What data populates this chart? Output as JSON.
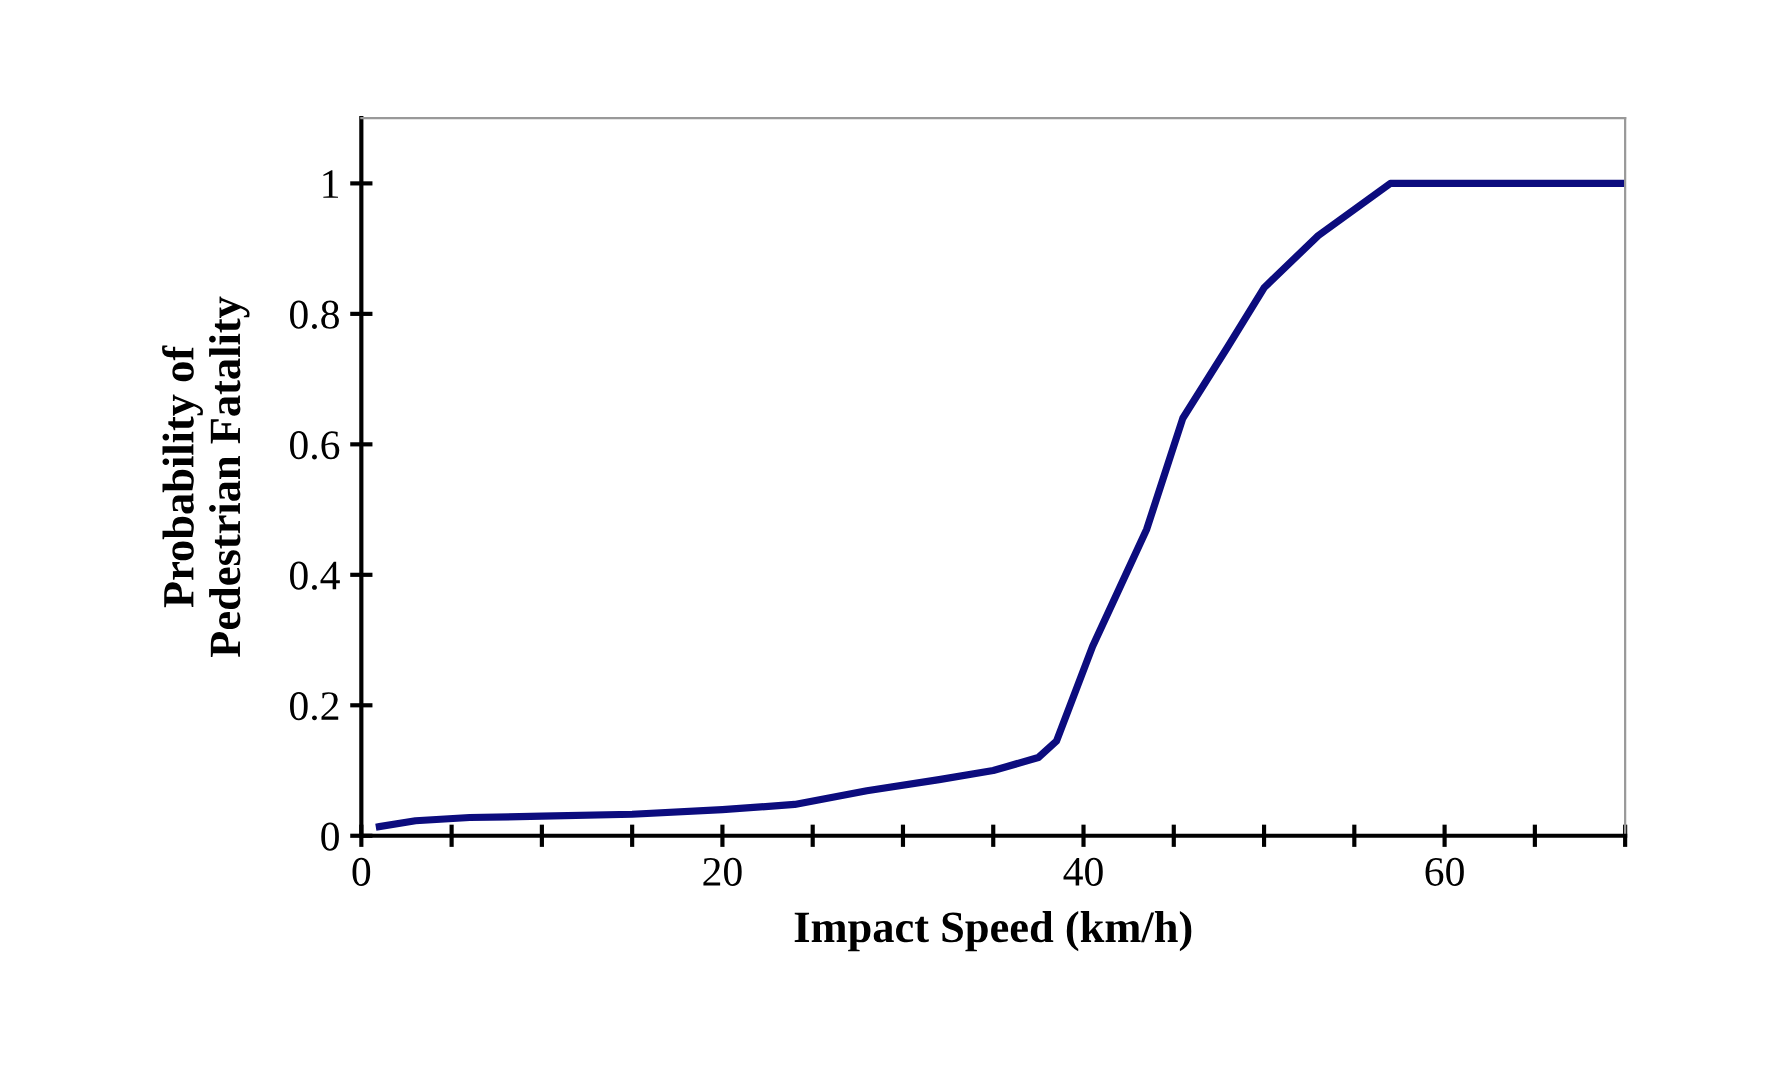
{
  "chart_data": {
    "type": "line",
    "xlabel": "Impact Speed (km/h)",
    "ylabel": "Probability of\nPedestrian Fatality",
    "xlim": [
      0,
      70
    ],
    "ylim": [
      0,
      1.1
    ],
    "xticks": [
      0,
      {
        "value": 5,
        "label": null
      },
      {
        "value": 10,
        "label": null
      },
      {
        "value": 15,
        "label": null
      },
      20,
      {
        "value": 25,
        "label": null
      },
      {
        "value": 30,
        "label": null
      },
      {
        "value": 35,
        "label": null
      },
      40,
      {
        "value": 45,
        "label": null
      },
      {
        "value": 50,
        "label": null
      },
      {
        "value": 55,
        "label": null
      },
      60,
      {
        "value": 65,
        "label": null
      },
      {
        "value": 70,
        "label": null
      }
    ],
    "yticks": [
      0,
      0.2,
      0.4,
      0.6,
      0.8,
      1
    ],
    "grid": false,
    "marker": "none",
    "line_style": "solid",
    "series": [
      {
        "color": "#0c0c7e",
        "x": [
          1,
          3,
          6,
          10,
          15,
          20,
          24,
          28,
          32,
          35,
          37.5,
          38.5,
          40.5,
          42,
          43.5,
          45.5,
          48,
          50,
          53,
          57,
          70
        ],
        "values": [
          0.014,
          0.023,
          0.028,
          0.03,
          0.033,
          0.04,
          0.048,
          0.069,
          0.086,
          0.1,
          0.12,
          0.145,
          0.29,
          0.38,
          0.47,
          0.64,
          0.75,
          0.84,
          0.92,
          1.0,
          1.0
        ]
      }
    ]
  }
}
